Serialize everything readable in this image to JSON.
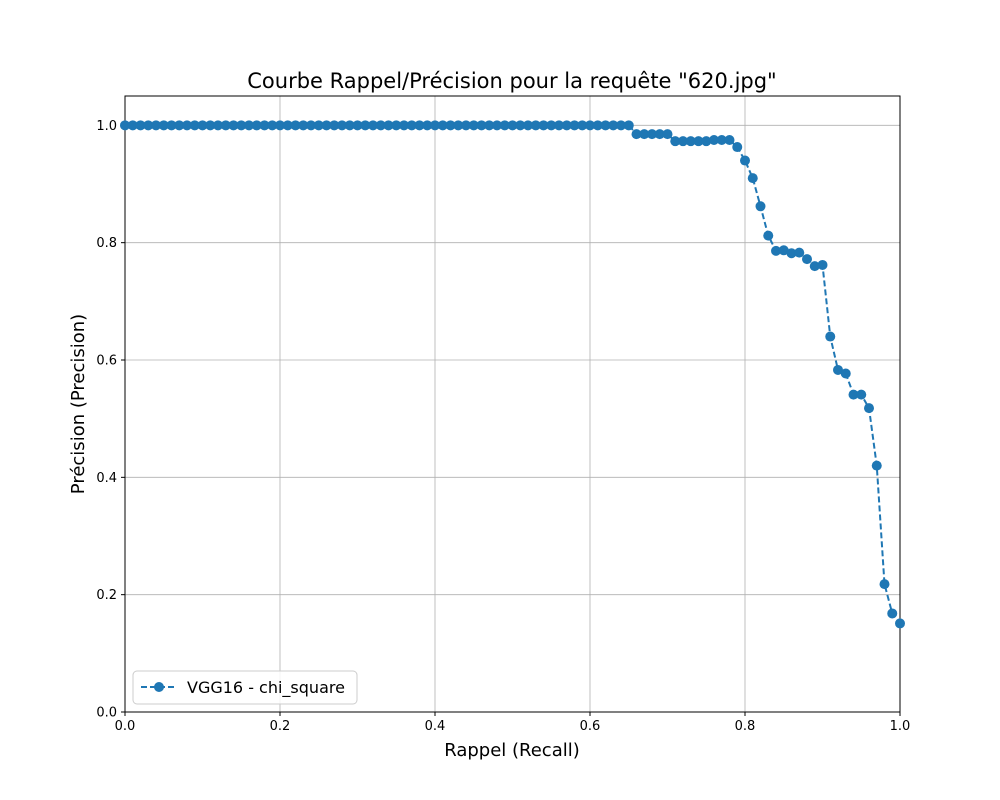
{
  "chart_data": {
    "type": "line",
    "title": "Courbe Rappel/Précision pour la requête \"620.jpg\"",
    "xlabel": "Rappel (Recall)",
    "ylabel": "Précision (Precision)",
    "xlim": [
      0,
      1.0
    ],
    "ylim": [
      0,
      1.05
    ],
    "xticks": [
      "0.0",
      "0.2",
      "0.4",
      "0.6",
      "0.8",
      "1.0"
    ],
    "yticks": [
      "0.0",
      "0.2",
      "0.4",
      "0.6",
      "0.8",
      "1.0"
    ],
    "grid": true,
    "legend_position": "lower-left",
    "series": [
      {
        "name": "VGG16 - chi_square",
        "color": "#1f77b4",
        "line_style": "dashed",
        "marker": "circle",
        "x": [
          0.0,
          0.01,
          0.02,
          0.03,
          0.04,
          0.05,
          0.06,
          0.07,
          0.08,
          0.09,
          0.1,
          0.11,
          0.12,
          0.13,
          0.14,
          0.15,
          0.16,
          0.17,
          0.18,
          0.19,
          0.2,
          0.21,
          0.22,
          0.23,
          0.24,
          0.25,
          0.26,
          0.27,
          0.28,
          0.29,
          0.3,
          0.31,
          0.32,
          0.33,
          0.34,
          0.35,
          0.36,
          0.37,
          0.38,
          0.39,
          0.4,
          0.41,
          0.42,
          0.43,
          0.44,
          0.45,
          0.46,
          0.47,
          0.48,
          0.49,
          0.5,
          0.51,
          0.52,
          0.53,
          0.54,
          0.55,
          0.56,
          0.57,
          0.58,
          0.59,
          0.6,
          0.61,
          0.62,
          0.63,
          0.64,
          0.65,
          0.66,
          0.67,
          0.68,
          0.69,
          0.7,
          0.71,
          0.72,
          0.73,
          0.74,
          0.75,
          0.76,
          0.77,
          0.78,
          0.79,
          0.8,
          0.81,
          0.82,
          0.83,
          0.84,
          0.85,
          0.86,
          0.87,
          0.88,
          0.89,
          0.9,
          0.91,
          0.92,
          0.93,
          0.94,
          0.95,
          0.96,
          0.97,
          0.98,
          0.99,
          1.0
        ],
        "y": [
          1.0,
          1.0,
          1.0,
          1.0,
          1.0,
          1.0,
          1.0,
          1.0,
          1.0,
          1.0,
          1.0,
          1.0,
          1.0,
          1.0,
          1.0,
          1.0,
          1.0,
          1.0,
          1.0,
          1.0,
          1.0,
          1.0,
          1.0,
          1.0,
          1.0,
          1.0,
          1.0,
          1.0,
          1.0,
          1.0,
          1.0,
          1.0,
          1.0,
          1.0,
          1.0,
          1.0,
          1.0,
          1.0,
          1.0,
          1.0,
          1.0,
          1.0,
          1.0,
          1.0,
          1.0,
          1.0,
          1.0,
          1.0,
          1.0,
          1.0,
          1.0,
          1.0,
          1.0,
          1.0,
          1.0,
          1.0,
          1.0,
          1.0,
          1.0,
          1.0,
          1.0,
          1.0,
          1.0,
          1.0,
          1.0,
          1.0,
          0.985,
          0.985,
          0.985,
          0.985,
          0.985,
          0.973,
          0.973,
          0.973,
          0.973,
          0.973,
          0.975,
          0.975,
          0.975,
          0.963,
          0.94,
          0.91,
          0.862,
          0.812,
          0.786,
          0.787,
          0.782,
          0.783,
          0.772,
          0.76,
          0.762,
          0.64,
          0.583,
          0.577,
          0.541,
          0.541,
          0.518,
          0.42,
          0.218,
          0.168,
          0.151
        ]
      }
    ]
  }
}
